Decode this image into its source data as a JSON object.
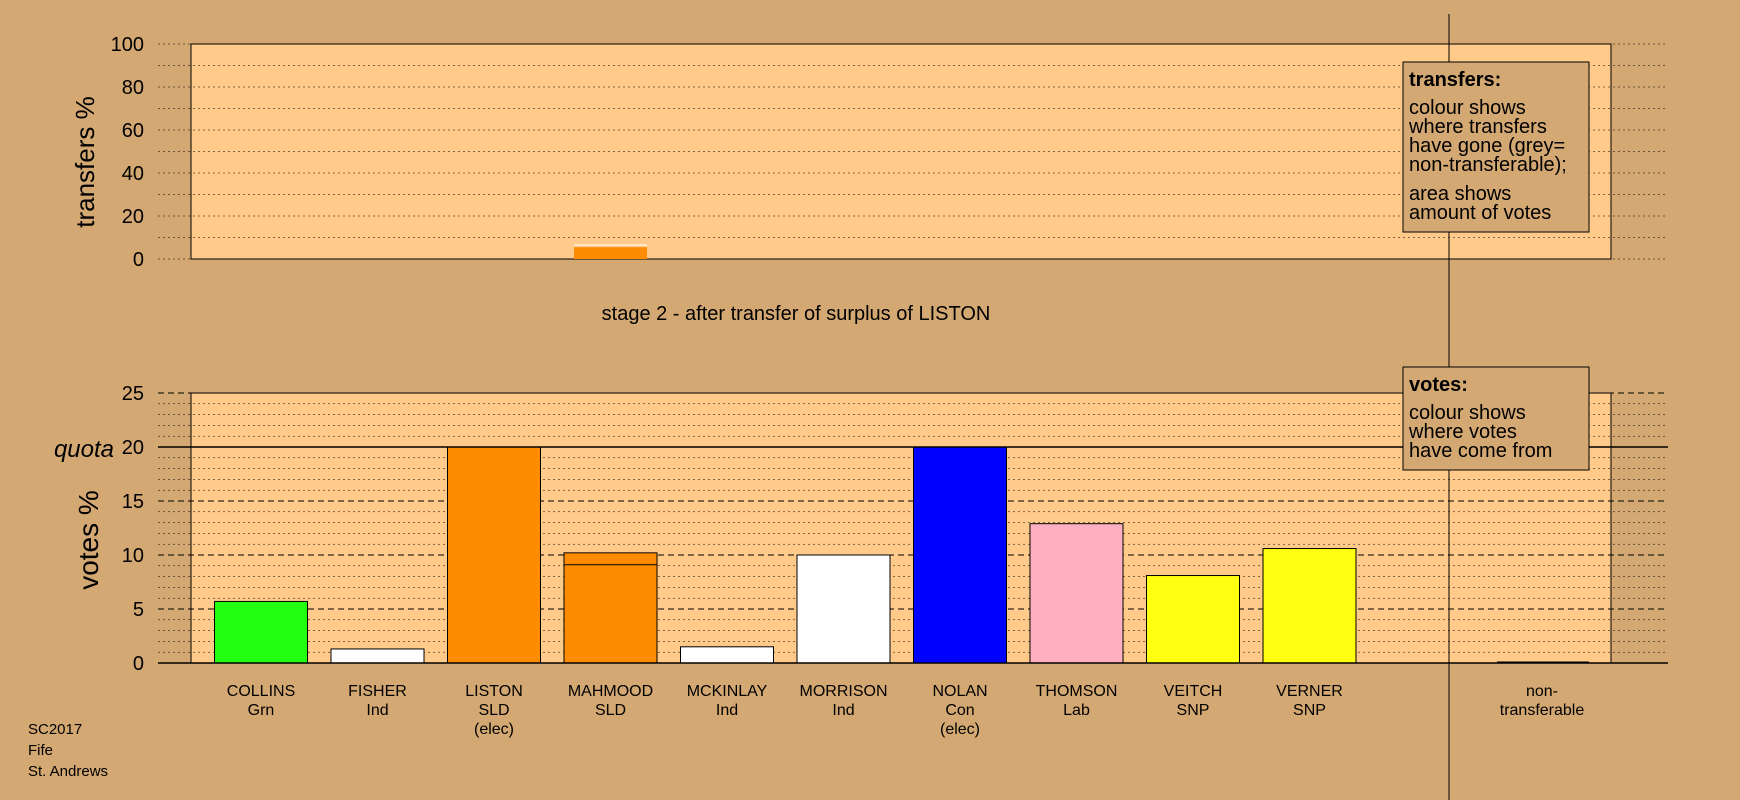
{
  "chart_data": [
    {
      "type": "bar",
      "title": "stage 2 - after transfer of surplus of LISTON",
      "ylabel": "transfers %",
      "ylim": [
        0,
        100
      ],
      "yticks": [
        0,
        20,
        40,
        60,
        80,
        100
      ],
      "categories": [
        "COLLINS",
        "FISHER",
        "LISTON",
        "MAHMOOD",
        "MCKINLAY",
        "MORRISON",
        "NOLAN",
        "THOMSON",
        "VEITCH",
        "VERNER"
      ],
      "values": [
        0,
        0,
        0,
        5.5,
        0,
        0,
        0,
        0,
        0,
        0
      ],
      "bar_colors": [
        "#ff8c00"
      ],
      "legend": {
        "title": "transfers:",
        "lines1": [
          "colour shows",
          "where transfers",
          "have gone (grey=",
          "non-transferable);"
        ],
        "lines2": [
          "area shows",
          "amount of votes"
        ]
      }
    },
    {
      "type": "bar",
      "ylabel": "votes %",
      "ylim": [
        0,
        25
      ],
      "yticks": [
        0,
        5,
        10,
        15,
        20,
        25
      ],
      "quota": 20,
      "quota_label": "quota",
      "candidates": [
        {
          "name": "COLLINS",
          "party": "Grn",
          "note": "",
          "value": 5.7,
          "color": "#22ff11",
          "transfer": 0
        },
        {
          "name": "FISHER",
          "party": "Ind",
          "note": "",
          "value": 1.3,
          "color": "#ffffff",
          "transfer": 0
        },
        {
          "name": "LISTON",
          "party": "SLD",
          "note": "(elec)",
          "value": 20.0,
          "color": "#ff8c00",
          "transfer": 0
        },
        {
          "name": "MAHMOOD",
          "party": "SLD",
          "note": "",
          "value": 10.2,
          "color": "#ff8c00",
          "transfer": 1.1
        },
        {
          "name": "MCKINLAY",
          "party": "Ind",
          "note": "",
          "value": 1.5,
          "color": "#ffffff",
          "transfer": 0
        },
        {
          "name": "MORRISON",
          "party": "Ind",
          "note": "",
          "value": 10.0,
          "color": "#ffffff",
          "transfer": 0
        },
        {
          "name": "NOLAN",
          "party": "Con",
          "note": "(elec)",
          "value": 20.0,
          "color": "#0000ff",
          "transfer": 0
        },
        {
          "name": "THOMSON",
          "party": "Lab",
          "note": "",
          "value": 12.9,
          "color": "#ffb0c0",
          "transfer": 0
        },
        {
          "name": "VEITCH",
          "party": "SNP",
          "note": "",
          "value": 8.1,
          "color": "#ffff11",
          "transfer": 0
        },
        {
          "name": "VERNER",
          "party": "SNP",
          "note": "",
          "value": 10.6,
          "color": "#ffff11",
          "transfer": 0
        }
      ],
      "nontransferable": {
        "line1": "non-",
        "line2": "transferable",
        "value": 0
      },
      "legend": {
        "title": "votes:",
        "lines": [
          "colour shows",
          "where votes",
          "have come from"
        ]
      }
    }
  ],
  "footer": {
    "line1": "SC2017",
    "line2": "Fife",
    "line3": "St. Andrews"
  }
}
